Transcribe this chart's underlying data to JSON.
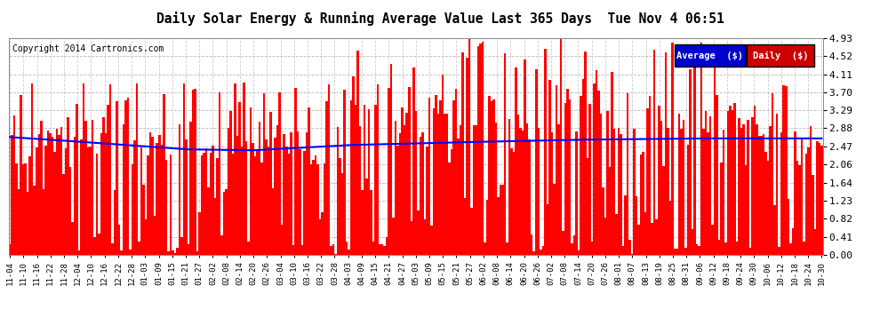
{
  "title": "Daily Solar Energy & Running Average Value Last 365 Days  Tue Nov 4 06:51",
  "copyright": "Copyright 2014 Cartronics.com",
  "bar_color": "#FF0000",
  "avg_color": "#0000FF",
  "bg_color": "#FFFFFF",
  "plot_bg_color": "#FFFFFF",
  "grid_color": "#AAAAAA",
  "yticks": [
    0.0,
    0.41,
    0.82,
    1.23,
    1.64,
    2.06,
    2.47,
    2.88,
    3.29,
    3.7,
    4.11,
    4.52,
    4.93
  ],
  "ymax": 4.93,
  "legend_avg_color": "#0000CC",
  "legend_daily_color": "#CC0000",
  "legend_avg_label": "Average  ($)",
  "legend_daily_label": "Daily  ($)",
  "xtick_labels": [
    "11-04",
    "11-10",
    "11-16",
    "11-22",
    "11-28",
    "12-04",
    "12-10",
    "12-16",
    "12-22",
    "12-28",
    "01-03",
    "01-09",
    "01-15",
    "01-21",
    "01-27",
    "02-02",
    "02-08",
    "02-14",
    "02-20",
    "02-26",
    "03-04",
    "03-10",
    "03-16",
    "03-22",
    "03-28",
    "04-03",
    "04-09",
    "04-15",
    "04-21",
    "04-27",
    "05-03",
    "05-09",
    "05-15",
    "05-21",
    "05-27",
    "06-02",
    "06-08",
    "06-14",
    "06-20",
    "06-26",
    "07-02",
    "07-08",
    "07-14",
    "07-20",
    "07-26",
    "08-01",
    "08-07",
    "08-13",
    "08-19",
    "08-25",
    "08-31",
    "09-06",
    "09-12",
    "09-18",
    "09-24",
    "09-30",
    "10-06",
    "10-12",
    "10-18",
    "10-24",
    "10-30"
  ]
}
